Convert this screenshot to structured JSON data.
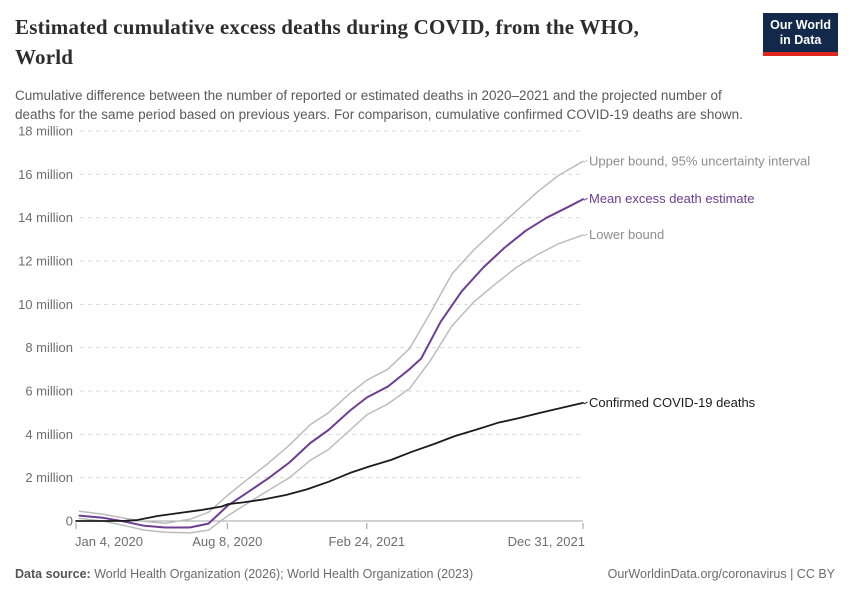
{
  "header": {
    "title_line1": "Estimated cumulative excess deaths during COVID, from the WHO,",
    "title_line2": "World",
    "subtitle_line1": "Cumulative difference between the number of reported or estimated deaths in 2020–2021 and the projected number of",
    "subtitle_line2": "deaths for the same period based on previous years. For comparison, cumulative confirmed COVID-19 deaths are shown.",
    "logo": {
      "line1": "Our World",
      "line2": "in Data",
      "bg_color": "#12294b",
      "bar_color": "#e0261c"
    }
  },
  "chart_data": {
    "type": "line",
    "title": "Estimated cumulative excess deaths during COVID, from the WHO, World",
    "x_axis": {
      "unit": "date (days since Jan 4, 2020)",
      "range_days": [
        0,
        727
      ],
      "ticks": [
        {
          "day": 0,
          "label": "Jan 4, 2020"
        },
        {
          "day": 217,
          "label": "Aug 8, 2020"
        },
        {
          "day": 417,
          "label": "Feb 24, 2021"
        },
        {
          "day": 727,
          "label": "Dec 31, 2021"
        }
      ]
    },
    "y_axis": {
      "unit": "deaths (millions)",
      "ylim": [
        -0.7,
        18
      ],
      "gridlines": "dashed",
      "ticks": [
        {
          "value": 0,
          "label": "0"
        },
        {
          "value": 2,
          "label": "2 million"
        },
        {
          "value": 4,
          "label": "4 million"
        },
        {
          "value": 6,
          "label": "6 million"
        },
        {
          "value": 8,
          "label": "8 million"
        },
        {
          "value": 10,
          "label": "10 million"
        },
        {
          "value": 12,
          "label": "12 million"
        },
        {
          "value": 14,
          "label": "14 million"
        },
        {
          "value": 16,
          "label": "16 million"
        },
        {
          "value": 18,
          "label": "18 million"
        }
      ]
    },
    "legend_position": "line-end-labels",
    "series": [
      {
        "name": "Upper bound, 95% uncertainty interval",
        "color": "#bcbcbc",
        "label_color": "#8d8d8d",
        "stroke_width": 1.5,
        "points": [
          [
            5,
            0.45
          ],
          [
            38,
            0.32
          ],
          [
            68,
            0.14
          ],
          [
            98,
            -0.02
          ],
          [
            128,
            -0.1
          ],
          [
            163,
            0.08
          ],
          [
            190,
            0.4
          ],
          [
            218,
            1.2
          ],
          [
            245,
            1.9
          ],
          [
            275,
            2.65
          ],
          [
            306,
            3.5
          ],
          [
            336,
            4.45
          ],
          [
            362,
            5.0
          ],
          [
            393,
            5.9
          ],
          [
            417,
            6.5
          ],
          [
            447,
            7.0
          ],
          [
            478,
            7.95
          ],
          [
            508,
            9.6
          ],
          [
            539,
            11.4
          ],
          [
            570,
            12.5
          ],
          [
            600,
            13.4
          ],
          [
            631,
            14.3
          ],
          [
            662,
            15.2
          ],
          [
            692,
            15.95
          ],
          [
            727,
            16.6
          ]
        ]
      },
      {
        "name": "Lower bound",
        "color": "#bcbcbc",
        "label_color": "#8d8d8d",
        "stroke_width": 1.5,
        "points": [
          [
            5,
            0.12
          ],
          [
            38,
            0.0
          ],
          [
            68,
            -0.2
          ],
          [
            98,
            -0.42
          ],
          [
            128,
            -0.52
          ],
          [
            163,
            -0.55
          ],
          [
            190,
            -0.42
          ],
          [
            218,
            0.25
          ],
          [
            245,
            0.8
          ],
          [
            275,
            1.4
          ],
          [
            306,
            2.0
          ],
          [
            336,
            2.8
          ],
          [
            362,
            3.3
          ],
          [
            393,
            4.2
          ],
          [
            417,
            4.9
          ],
          [
            447,
            5.4
          ],
          [
            478,
            6.1
          ],
          [
            508,
            7.4
          ],
          [
            539,
            9.0
          ],
          [
            570,
            10.1
          ],
          [
            600,
            10.9
          ],
          [
            631,
            11.7
          ],
          [
            662,
            12.3
          ],
          [
            692,
            12.8
          ],
          [
            727,
            13.2
          ]
        ]
      },
      {
        "name": "Mean excess death estimate",
        "color": "#6d3e91",
        "label_color": "#6d3e91",
        "stroke_width": 2,
        "points": [
          [
            5,
            0.25
          ],
          [
            38,
            0.15
          ],
          [
            68,
            -0.02
          ],
          [
            98,
            -0.22
          ],
          [
            128,
            -0.3
          ],
          [
            163,
            -0.3
          ],
          [
            190,
            -0.12
          ],
          [
            218,
            0.72
          ],
          [
            245,
            1.3
          ],
          [
            275,
            1.95
          ],
          [
            306,
            2.7
          ],
          [
            336,
            3.6
          ],
          [
            362,
            4.2
          ],
          [
            393,
            5.1
          ],
          [
            417,
            5.7
          ],
          [
            447,
            6.2
          ],
          [
            478,
            7.0
          ],
          [
            495,
            7.5
          ],
          [
            523,
            9.2
          ],
          [
            553,
            10.6
          ],
          [
            584,
            11.7
          ],
          [
            614,
            12.6
          ],
          [
            645,
            13.4
          ],
          [
            675,
            14.0
          ],
          [
            706,
            14.5
          ],
          [
            727,
            14.85
          ]
        ]
      },
      {
        "name": "Confirmed COVID-19 deaths",
        "color": "#1b1b1b",
        "label_color": "#1b1b1b",
        "stroke_width": 1.8,
        "points": [
          [
            0,
            0.0
          ],
          [
            45,
            0.001
          ],
          [
            70,
            0.01
          ],
          [
            87,
            0.04
          ],
          [
            117,
            0.23
          ],
          [
            148,
            0.37
          ],
          [
            178,
            0.5
          ],
          [
            209,
            0.67
          ],
          [
            218,
            0.78
          ],
          [
            240,
            0.86
          ],
          [
            270,
            1.0
          ],
          [
            301,
            1.2
          ],
          [
            331,
            1.46
          ],
          [
            362,
            1.81
          ],
          [
            393,
            2.22
          ],
          [
            421,
            2.52
          ],
          [
            452,
            2.82
          ],
          [
            482,
            3.2
          ],
          [
            513,
            3.55
          ],
          [
            543,
            3.92
          ],
          [
            574,
            4.22
          ],
          [
            605,
            4.53
          ],
          [
            635,
            4.75
          ],
          [
            666,
            5.0
          ],
          [
            696,
            5.22
          ],
          [
            727,
            5.45
          ]
        ]
      }
    ]
  },
  "footer": {
    "datasource_label": "Data source:",
    "datasource_value": " World Health Organization (2026); World Health Organization (2023)",
    "credit": "OurWorldinData.org/coronavirus | CC BY"
  },
  "colors": {
    "grid": "#d9d9d9",
    "zero_line": "#a3a3a3",
    "axis_text": "#6e6e6e",
    "tick_mark": "#999999",
    "title_text": "#2d2d2d",
    "subtitle_text": "#5a5a5a",
    "footer_text": "#6b6b6b",
    "accent_purple": "#6d3e91",
    "logo_bg": "#12294b",
    "logo_bar": "#e0261c"
  }
}
